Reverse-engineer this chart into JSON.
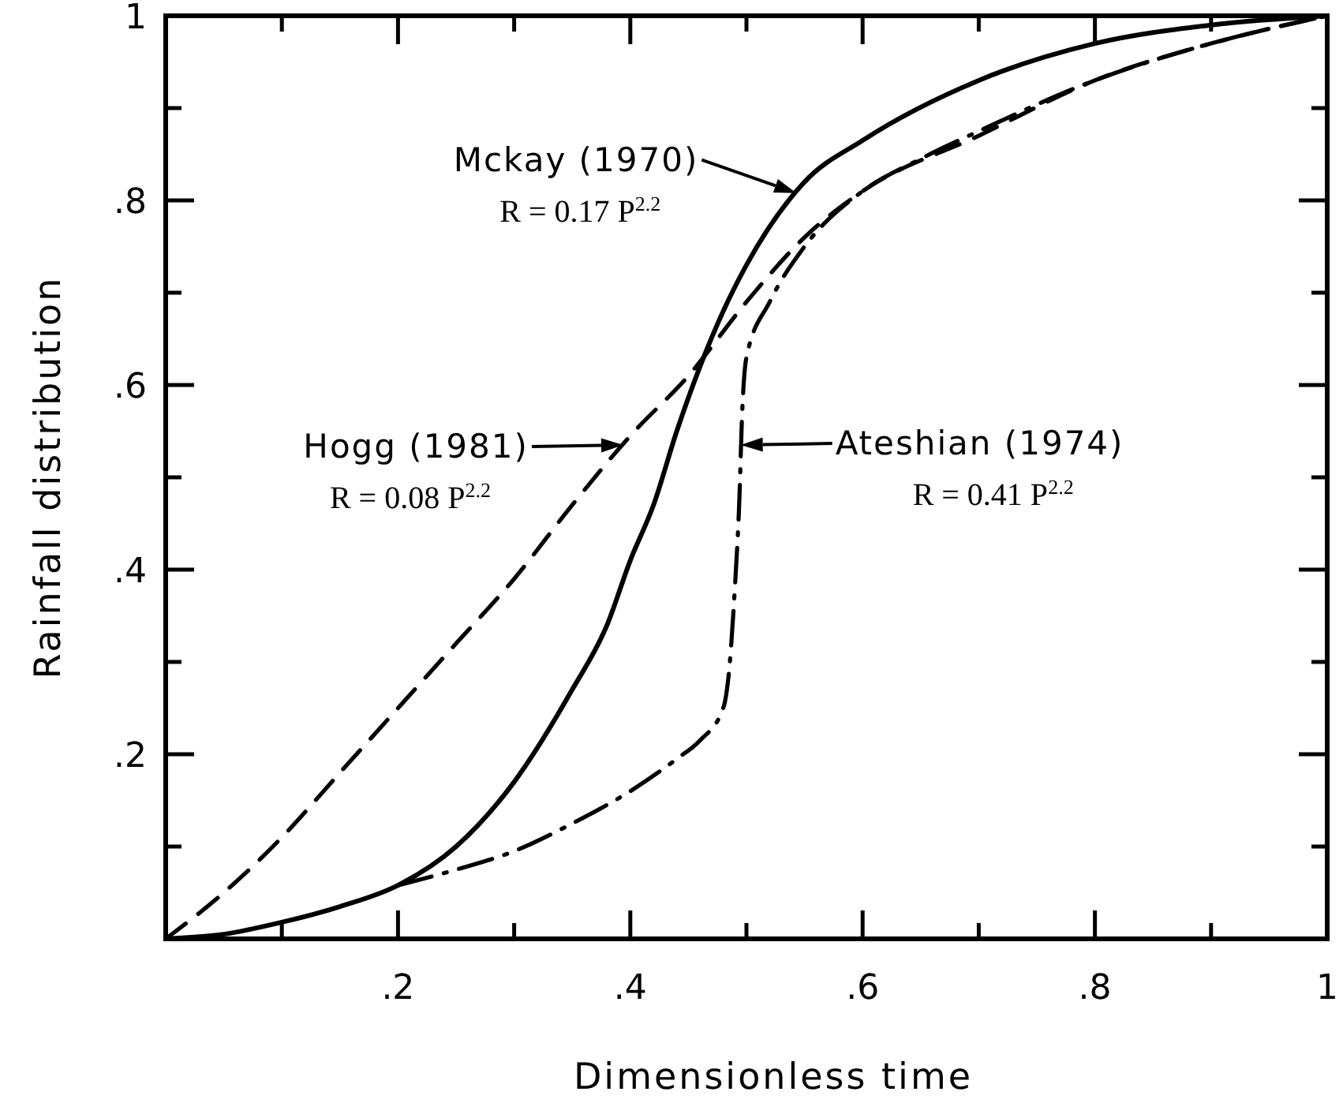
{
  "chart_data": {
    "type": "line",
    "xlabel": "Dimensionless time",
    "ylabel": "Rainfall distribution",
    "xlim": [
      0,
      1
    ],
    "ylim": [
      0,
      1
    ],
    "xticks": [
      {
        "value": 0,
        "label": null
      },
      {
        "value": 0.1,
        "label": null
      },
      {
        "value": 0.2,
        "label": ".2"
      },
      {
        "value": 0.3,
        "label": null
      },
      {
        "value": 0.4,
        "label": ".4"
      },
      {
        "value": 0.5,
        "label": null
      },
      {
        "value": 0.6,
        "label": ".6"
      },
      {
        "value": 0.7,
        "label": null
      },
      {
        "value": 0.8,
        "label": ".8"
      },
      {
        "value": 0.9,
        "label": null
      },
      {
        "value": 1,
        "label": "1"
      }
    ],
    "yticks": [
      {
        "value": 0,
        "label": null
      },
      {
        "value": 0.1,
        "label": null
      },
      {
        "value": 0.2,
        "label": ".2"
      },
      {
        "value": 0.3,
        "label": null
      },
      {
        "value": 0.4,
        "label": ".4"
      },
      {
        "value": 0.5,
        "label": null
      },
      {
        "value": 0.6,
        "label": ".6"
      },
      {
        "value": 0.7,
        "label": null
      },
      {
        "value": 0.8,
        "label": ".8"
      },
      {
        "value": 0.9,
        "label": null
      },
      {
        "value": 1,
        "label": "1"
      }
    ],
    "grid": false,
    "series": [
      {
        "color": "#000000",
        "line_style": "solid",
        "x": [
          0,
          0.05,
          0.1,
          0.15,
          0.2,
          0.25,
          0.3,
          0.35,
          0.38,
          0.4,
          0.42,
          0.44,
          0.46,
          0.48,
          0.5,
          0.55,
          0.6,
          0.7,
          0.8,
          0.9,
          1
        ],
        "values": [
          0,
          0.005,
          0.018,
          0.035,
          0.058,
          0.1,
          0.17,
          0.27,
          0.34,
          0.41,
          0.47,
          0.55,
          0.62,
          0.68,
          0.73,
          0.82,
          0.865,
          0.93,
          0.97,
          0.99,
          1
        ]
      },
      {
        "color": "#000000",
        "line_style": "dashed",
        "x": [
          0,
          0.05,
          0.1,
          0.15,
          0.2,
          0.25,
          0.3,
          0.35,
          0.4,
          0.45,
          0.5,
          0.55,
          0.6,
          0.7,
          0.8,
          0.9,
          1
        ],
        "values": [
          0,
          0.05,
          0.11,
          0.18,
          0.25,
          0.32,
          0.39,
          0.47,
          0.545,
          0.61,
          0.69,
          0.76,
          0.81,
          0.87,
          0.93,
          0.97,
          1
        ]
      },
      {
        "color": "#000000",
        "line_style": "dashdot",
        "x": [
          0.2,
          0.25,
          0.3,
          0.35,
          0.4,
          0.44,
          0.46,
          0.48,
          0.485,
          0.49,
          0.494,
          0.496,
          0.5,
          0.52,
          0.55,
          0.6,
          0.65,
          0.7,
          0.8,
          0.9,
          1
        ],
        "values": [
          0.058,
          0.075,
          0.095,
          0.125,
          0.16,
          0.195,
          0.215,
          0.25,
          0.29,
          0.38,
          0.48,
          0.56,
          0.63,
          0.69,
          0.75,
          0.81,
          0.845,
          0.875,
          0.93,
          0.97,
          1
        ]
      }
    ],
    "annotations": [
      {
        "text": "Mckay (1970)",
        "x": 0.543,
        "y": 0.808
      },
      "R = 0.17 P$^{2.2}$",
      {
        "text": "Hogg (1981)",
        "x": 0.394,
        "y": 0.535
      },
      "R = 0.08 P$^{2.2}$",
      {
        "text": "Ateshian (1974)",
        "x": 0.495,
        "y": 0.535
      },
      "R = 0.41 P$^{2.2}$"
    ]
  }
}
